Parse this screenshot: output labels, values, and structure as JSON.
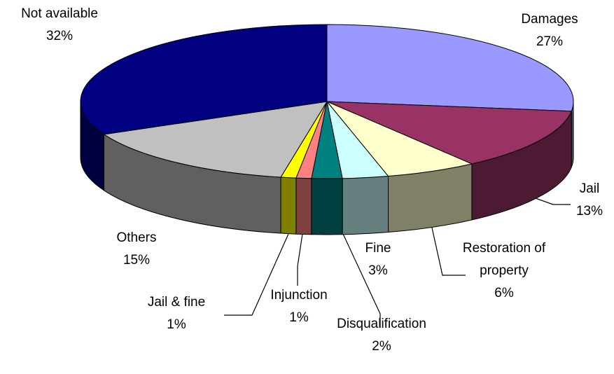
{
  "chart_data": {
    "type": "pie3d",
    "categories": [
      "Damages",
      "Jail",
      "Restoration of property",
      "Fine",
      "Disqualification",
      "Injunction",
      "Jail & fine",
      "Others",
      "Not available"
    ],
    "values": [
      27,
      13,
      6,
      3,
      2,
      1,
      1,
      15,
      32
    ],
    "value_labels": [
      "27%",
      "13%",
      "6%",
      "3%",
      "2%",
      "1%",
      "1%",
      "15%",
      "32%"
    ],
    "colors": [
      "#9999ff",
      "#993366",
      "#ffffcc",
      "#ccffff",
      "#008080",
      "#ff8080",
      "#ffff00",
      "#c0c0c0",
      "#000080"
    ]
  }
}
